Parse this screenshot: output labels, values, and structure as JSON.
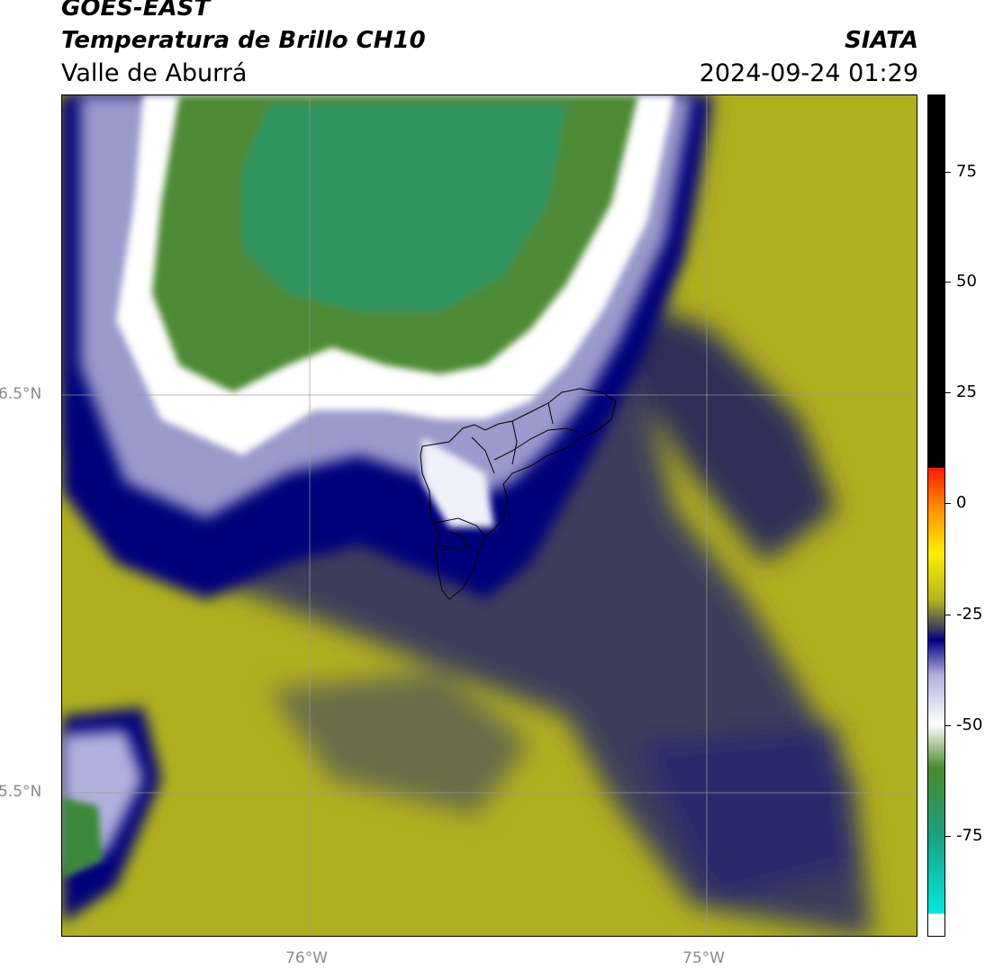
{
  "header": {
    "satellite": "GOES-EAST",
    "product": "Temperatura de Brillo CH10",
    "region": "Valle de Aburrá",
    "organization": "SIATA",
    "datetime": "2024-09-24 01:29"
  },
  "map": {
    "lat_labels": {
      "a": "6.5°N",
      "b": "5.5°N"
    },
    "lon_labels": {
      "a": "76°W",
      "b": "75°W"
    }
  },
  "colorbar": {
    "ticks": {
      "t75": "75",
      "t50": "50",
      "t25": "25",
      "t0": "0",
      "tm25": "-25",
      "tm50": "-50",
      "tm75": "-75"
    },
    "colors": {
      "black": "#000000",
      "red": "#ff1a00",
      "orange": "#ff8c00",
      "yellow": "#ffee00",
      "olive": "#b5b51c",
      "slate": "#3a3a5e",
      "navy": "#000080",
      "lavender": "#b0b0dc",
      "white": "#ffffff",
      "green": "#4a8a2a",
      "teal": "#1aa080",
      "cyan": "#00e8e0"
    }
  }
}
